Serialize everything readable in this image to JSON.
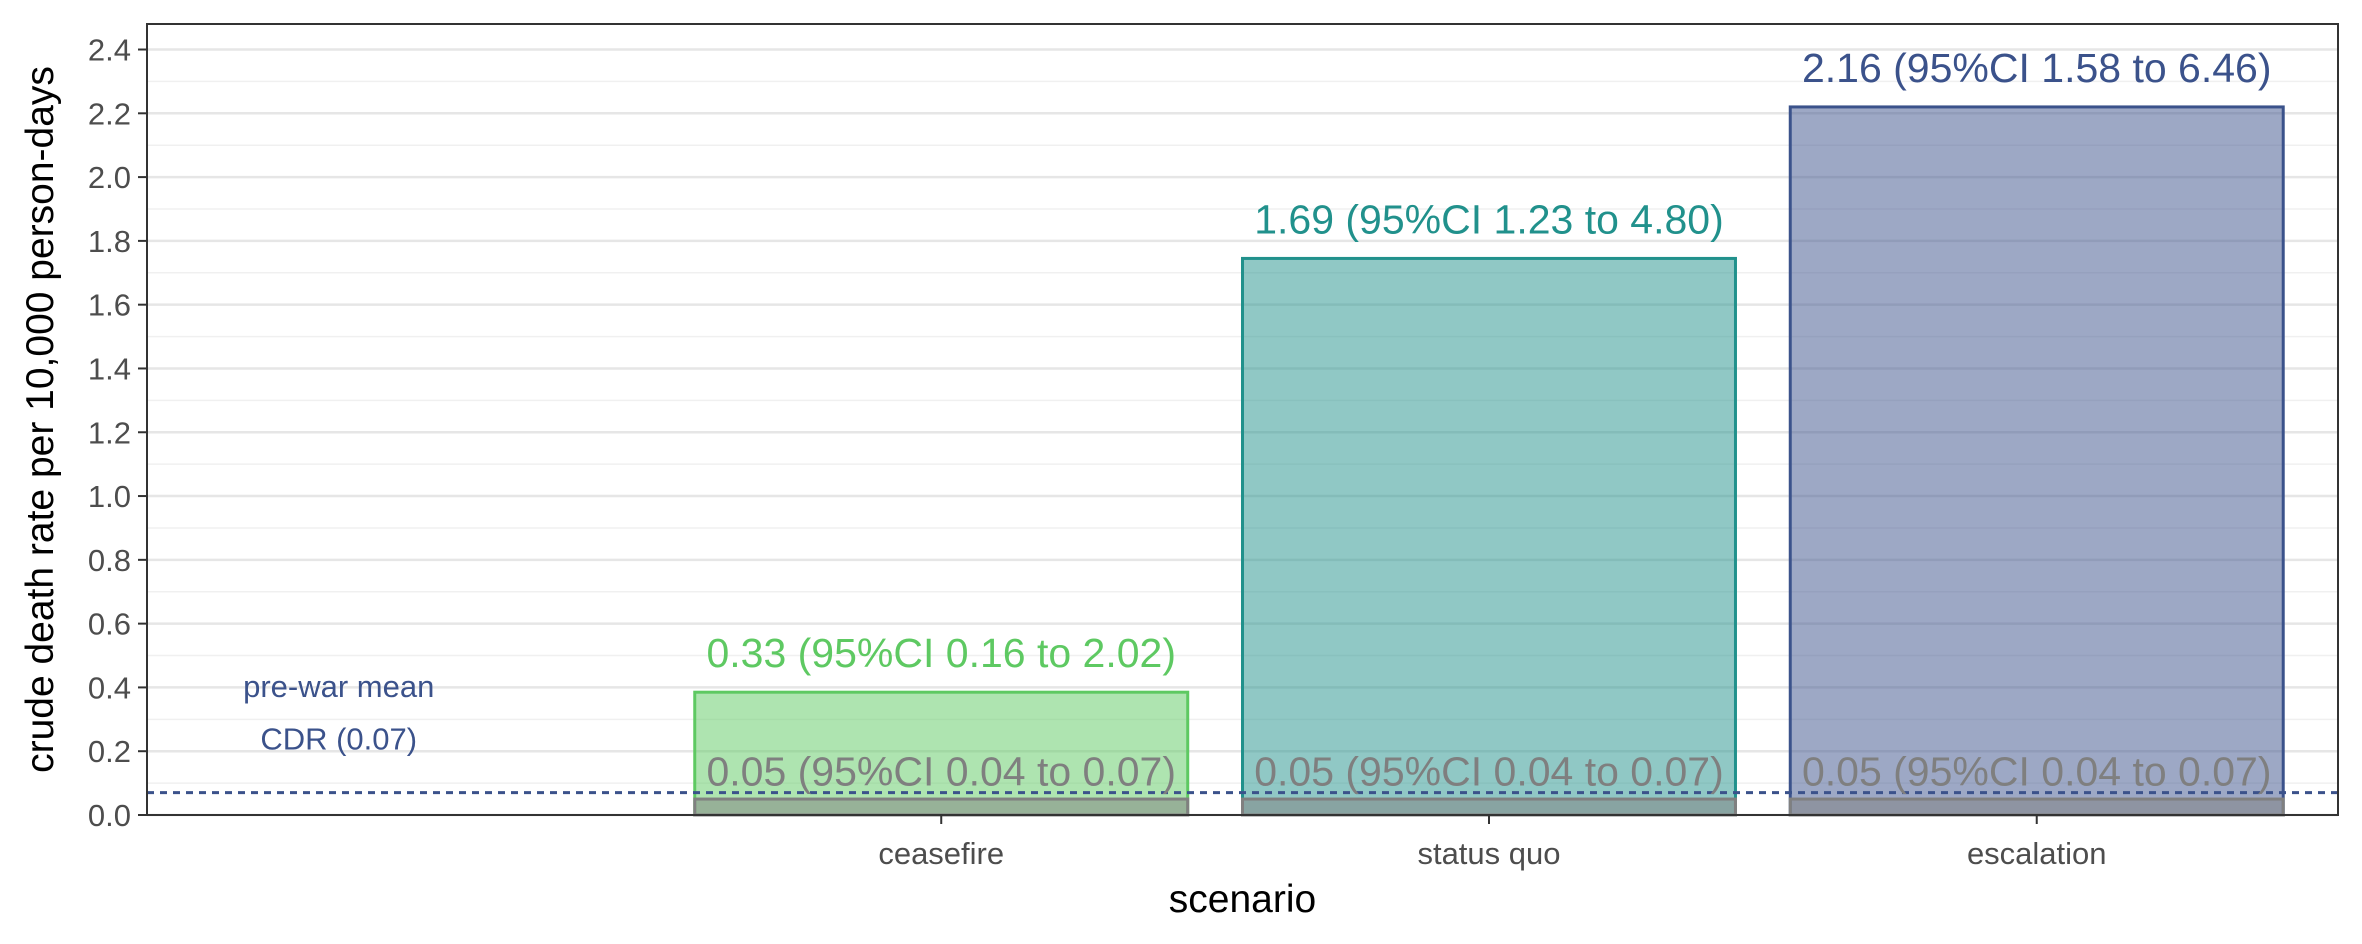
{
  "chart_data": {
    "type": "bar",
    "title": "",
    "xlabel": "scenario",
    "ylabel": "crude death rate per 10,000 person-days",
    "ylim": [
      0,
      2.48
    ],
    "yticks": [
      0.0,
      0.2,
      0.4,
      0.6,
      0.8,
      1.0,
      1.2,
      1.4,
      1.6,
      1.8,
      2.0,
      2.2,
      2.4
    ],
    "ytick_labels": [
      "0.0",
      "0.2",
      "0.4",
      "0.6",
      "0.8",
      "1.0",
      "1.2",
      "1.4",
      "1.6",
      "1.8",
      "2.0",
      "2.2",
      "2.4"
    ],
    "grid": true,
    "categories": [
      "ceasefire",
      "status quo",
      "escalation"
    ],
    "series": [
      {
        "values": [
          0.385,
          1.745,
          2.22
        ],
        "labels": [
          "0.33 (95%CI 0.16 to 2.02)",
          "1.69 (95%CI 1.23 to 4.80)",
          "2.16 (95%CI 1.58 to 6.46)"
        ],
        "colors": [
          "#5ec962",
          "#21918c",
          "#3b528b"
        ]
      },
      {
        "values": [
          0.05,
          0.05,
          0.05
        ],
        "labels": [
          "0.05 (95%CI 0.04 to 0.07)",
          "0.05 (95%CI 0.04 to 0.07)",
          "0.05 (95%CI 0.04 to 0.07)"
        ],
        "colors": [
          "#808080",
          "#808080",
          "#808080"
        ]
      }
    ],
    "reference_line": {
      "value": 0.07,
      "color": "#3b528b",
      "style": "dashed",
      "label_line1": "pre-war mean",
      "label_line2": "CDR (0.07)"
    }
  }
}
